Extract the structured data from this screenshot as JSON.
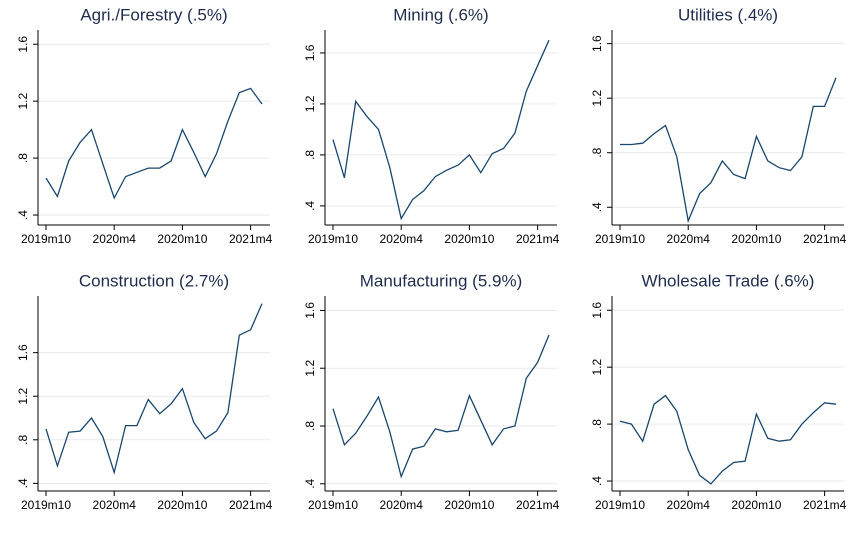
{
  "chart_data": [
    {
      "type": "line",
      "title": "Agri./Forestry (.5%)",
      "color": "#1a476f",
      "grid": true,
      "categories": [
        "2019m10",
        null,
        null,
        null,
        null,
        null,
        "2020m4",
        null,
        null,
        null,
        null,
        null,
        "2020m10",
        null,
        null,
        null,
        null,
        null,
        "2021m4",
        null
      ],
      "values": [
        0.66,
        0.53,
        0.78,
        0.91,
        1.0,
        0.76,
        0.52,
        0.67,
        0.7,
        0.73,
        0.73,
        0.78,
        1.0,
        0.84,
        0.67,
        0.83,
        1.06,
        1.26,
        1.29,
        1.18
      ],
      "ylim": [
        0.33,
        1.7
      ],
      "yticks": [
        {
          "value": 0.4,
          "label": ".4"
        },
        {
          "value": 0.8,
          "label": ".8"
        },
        1.2,
        1.6
      ]
    },
    {
      "type": "line",
      "title": "Mining (.6%)",
      "color": "#1a476f",
      "grid": true,
      "categories": [
        "2019m10",
        null,
        null,
        null,
        null,
        null,
        "2020m4",
        null,
        null,
        null,
        null,
        null,
        "2020m10",
        null,
        null,
        null,
        null,
        null,
        "2021m4",
        null
      ],
      "values": [
        0.92,
        0.62,
        1.22,
        1.1,
        1.0,
        0.7,
        0.3,
        0.45,
        0.52,
        0.63,
        0.68,
        0.72,
        0.8,
        0.66,
        0.81,
        0.85,
        0.97,
        1.3,
        1.5,
        1.7
      ],
      "ylim": [
        0.25,
        1.78
      ],
      "yticks": [
        {
          "value": 0.4,
          "label": ".4"
        },
        {
          "value": 0.8,
          "label": ".8"
        },
        1.2,
        1.6
      ]
    },
    {
      "type": "line",
      "title": "Utilities (.4%)",
      "color": "#1a476f",
      "grid": true,
      "categories": [
        "2019m10",
        null,
        null,
        null,
        null,
        null,
        "2020m4",
        null,
        null,
        null,
        null,
        null,
        "2020m10",
        null,
        null,
        null,
        null,
        null,
        "2021m4",
        null
      ],
      "values": [
        0.86,
        0.86,
        0.87,
        0.94,
        1.0,
        0.77,
        0.3,
        0.5,
        0.58,
        0.74,
        0.64,
        0.61,
        0.92,
        0.74,
        0.69,
        0.67,
        0.77,
        1.14,
        1.14,
        1.35
      ],
      "ylim": [
        0.27,
        1.7
      ],
      "yticks": [
        {
          "value": 0.4,
          "label": ".4"
        },
        {
          "value": 0.8,
          "label": ".8"
        },
        1.2,
        1.6
      ]
    },
    {
      "type": "line",
      "title": "Construction (2.7%)",
      "color": "#1a476f",
      "grid": true,
      "categories": [
        "2019m10",
        null,
        null,
        null,
        null,
        null,
        "2020m4",
        null,
        null,
        null,
        null,
        null,
        "2020m10",
        null,
        null,
        null,
        null,
        null,
        "2021m4",
        null
      ],
      "values": [
        0.9,
        0.56,
        0.87,
        0.88,
        1.0,
        0.83,
        0.5,
        0.93,
        0.93,
        1.17,
        1.04,
        1.13,
        1.27,
        0.96,
        0.81,
        0.88,
        1.05,
        1.76,
        1.81,
        2.05
      ],
      "ylim": [
        0.33,
        2.12
      ],
      "yticks": [
        {
          "value": 0.4,
          "label": ".4"
        },
        {
          "value": 0.8,
          "label": ".8"
        },
        1.2,
        1.6
      ]
    },
    {
      "type": "line",
      "title": "Manufacturing (5.9%)",
      "color": "#1a476f",
      "grid": true,
      "categories": [
        "2019m10",
        null,
        null,
        null,
        null,
        null,
        "2020m4",
        null,
        null,
        null,
        null,
        null,
        "2020m10",
        null,
        null,
        null,
        null,
        null,
        "2021m4",
        null
      ],
      "values": [
        0.92,
        0.67,
        0.75,
        0.87,
        1.0,
        0.76,
        0.45,
        0.64,
        0.66,
        0.78,
        0.76,
        0.77,
        1.01,
        0.84,
        0.67,
        0.78,
        0.8,
        1.13,
        1.24,
        1.43
      ],
      "ylim": [
        0.35,
        1.7
      ],
      "yticks": [
        {
          "value": 0.4,
          "label": ".4"
        },
        {
          "value": 0.8,
          "label": ".8"
        },
        1.2,
        1.6
      ]
    },
    {
      "type": "line",
      "title": "Wholesale Trade (.6%)",
      "color": "#1a476f",
      "grid": true,
      "categories": [
        "2019m10",
        null,
        null,
        null,
        null,
        null,
        "2020m4",
        null,
        null,
        null,
        null,
        null,
        "2020m10",
        null,
        null,
        null,
        null,
        null,
        "2021m4",
        null
      ],
      "values": [
        0.82,
        0.8,
        0.68,
        0.94,
        1.0,
        0.89,
        0.62,
        0.44,
        0.38,
        0.47,
        0.53,
        0.54,
        0.87,
        0.7,
        0.68,
        0.69,
        0.8,
        0.88,
        0.95,
        0.94
      ],
      "ylim": [
        0.33,
        1.7
      ],
      "yticks": [
        {
          "value": 0.4,
          "label": ".4"
        },
        {
          "value": 0.8,
          "label": ".8"
        },
        1.2,
        1.6
      ]
    }
  ]
}
